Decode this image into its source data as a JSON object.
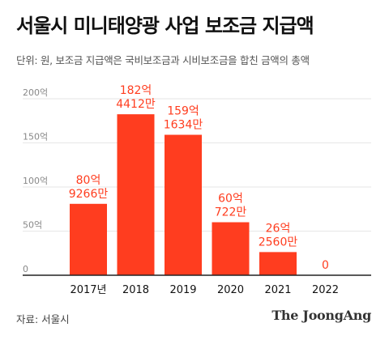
{
  "header": {
    "title": "서울시 미니태양광 사업 보조금 지급액",
    "subtitle": "단위: 원, 보조금 지급액은 국비보조금과 시비보조금을 합친 금액의 총액"
  },
  "chart_data": {
    "type": "bar",
    "categories": [
      "2017년",
      "2018",
      "2019",
      "2020",
      "2021",
      "2022"
    ],
    "values": [
      80.9266,
      182.4412,
      159.1634,
      60.0722,
      26.256,
      0
    ],
    "data_labels": [
      [
        "80억",
        "9266만"
      ],
      [
        "182억",
        "4412만"
      ],
      [
        "159억",
        "1634만"
      ],
      [
        "60억",
        "722만"
      ],
      [
        "26억",
        "2560만"
      ],
      [
        "0"
      ]
    ],
    "ylim": [
      0,
      200
    ],
    "yticks": [
      {
        "value": 0,
        "label": "0"
      },
      {
        "value": 50,
        "label": "50억"
      },
      {
        "value": 100,
        "label": "100억"
      },
      {
        "value": 150,
        "label": "150억"
      },
      {
        "value": 200,
        "label": "200억"
      }
    ],
    "grid": true,
    "colors": {
      "bar": "#ff3d1f",
      "label": "#ff3d1f",
      "grid": "#e6e6e6",
      "axis": "#222222",
      "tick": "#888888"
    }
  },
  "footer": {
    "source": "자료: 서울시",
    "logo": "The JoongAng"
  }
}
